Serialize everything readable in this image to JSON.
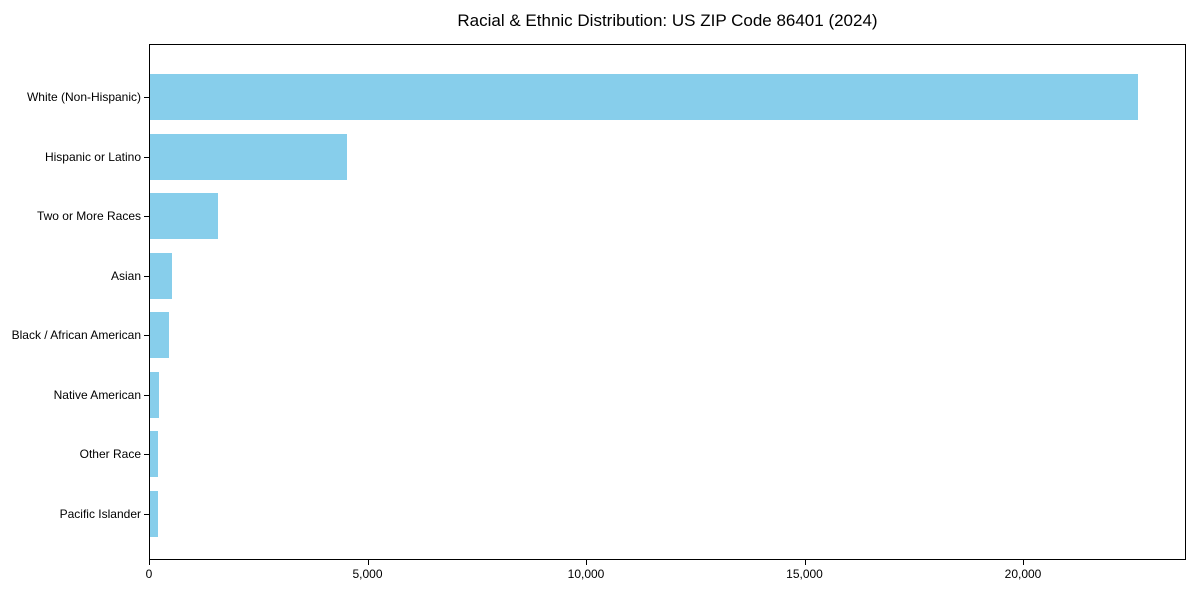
{
  "chart_data": {
    "type": "bar",
    "orientation": "horizontal",
    "title": "Racial & Ethnic Distribution: US ZIP Code 86401 (2024)",
    "categories": [
      "White (Non-Hispanic)",
      "Hispanic or Latino",
      "Two or More Races",
      "Asian",
      "Black / African American",
      "Native American",
      "Other Race",
      "Pacific Islander"
    ],
    "values": [
      22600,
      4500,
      1550,
      500,
      440,
      215,
      190,
      180
    ],
    "xlabel": "",
    "ylabel": "",
    "xlim": [
      0,
      23730
    ],
    "x_ticks": [
      0,
      5000,
      10000,
      15000,
      20000
    ],
    "x_tick_labels": [
      "0",
      "5,000",
      "10,000",
      "15,000",
      "20,000"
    ],
    "bar_color": "#87CEEB",
    "axis_color": "#000000",
    "background_color": "#ffffff",
    "grid": false,
    "legend": false
  }
}
